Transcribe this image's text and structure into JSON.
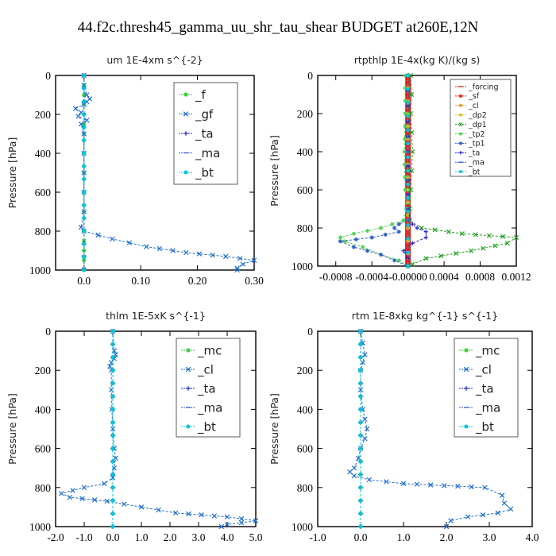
{
  "figure_title": "44.f2c.thresh45_gamma_uu_shr_tau_shear  BUDGET at260E,12N",
  "chart_data": [
    {
      "type": "line",
      "title": "um   1E-4xm s^{-2}",
      "ylabel": "Pressure [hPa]",
      "xlim": [
        -0.05,
        0.3
      ],
      "ylim": [
        1000,
        0
      ],
      "xticks": [
        0.0,
        0.1,
        0.2,
        0.3
      ],
      "xtick_labels": [
        "0.0",
        "0.10",
        "0.20",
        "0.30"
      ],
      "yticks": [
        0,
        200,
        400,
        600,
        800,
        1000
      ],
      "legend_position": "upper-right",
      "series": [
        {
          "name": "_f",
          "color": "#22cc22",
          "marker": "star",
          "y": [
            0,
            50,
            100,
            150,
            200,
            250,
            300,
            400,
            500,
            600,
            700,
            800,
            850,
            900,
            950,
            1000
          ],
          "x": [
            0,
            0,
            0,
            0,
            0,
            0,
            0,
            0,
            0,
            0,
            0,
            0,
            0,
            0,
            0,
            0
          ]
        },
        {
          "name": "_gf",
          "color": "#1f6fd0",
          "marker": "cross",
          "y": [
            0,
            50,
            100,
            120,
            135,
            150,
            170,
            190,
            210,
            230,
            250,
            300,
            400,
            500,
            600,
            700,
            780,
            800,
            840,
            880,
            910,
            930,
            950,
            970,
            990,
            1000
          ],
          "x": [
            0,
            0,
            0.005,
            0.01,
            0.005,
            0.0,
            -0.015,
            -0.005,
            -0.01,
            0.005,
            -0.005,
            0.0,
            0.0,
            0.0,
            0.0,
            0.0,
            -0.005,
            0.0,
            0.05,
            0.11,
            0.18,
            0.25,
            0.3,
            0.28,
            0.27,
            0.27
          ]
        },
        {
          "name": "_ta",
          "color": "#1c1cd0",
          "marker": "plus",
          "y": [
            0,
            200,
            400,
            600,
            800,
            990
          ],
          "x": [
            0,
            0,
            0,
            0,
            0,
            0
          ]
        },
        {
          "name": "_ma",
          "color": "#3a58c8",
          "marker": "dash",
          "y": [
            0,
            200,
            400,
            600,
            800,
            1000
          ],
          "x": [
            0,
            0,
            0,
            0,
            0,
            0
          ]
        },
        {
          "name": "_bt",
          "color": "#00c8d8",
          "marker": "dot",
          "y": [
            0,
            200,
            400,
            600,
            800,
            1000
          ],
          "x": [
            0,
            0,
            0,
            0,
            0,
            0
          ]
        }
      ]
    },
    {
      "type": "line",
      "title": "rtpthlp   1E-4x(kg K)/(kg s)",
      "ylabel": "Pressure [hPa]",
      "xlim": [
        -0.001,
        0.0012
      ],
      "ylim": [
        1000,
        0
      ],
      "xticks": [
        -0.0008,
        -0.0004,
        0.0,
        0.0004,
        0.0008,
        0.0012
      ],
      "xtick_labels": [
        "-0.0008",
        "-0.0004",
        "-0.00000",
        "0.0004",
        "0.0008",
        "0.0012"
      ],
      "yticks": [
        0,
        200,
        400,
        600,
        800,
        1000
      ],
      "legend_position": "upper-right",
      "series": [
        {
          "name": "_forcing",
          "color": "#e02020",
          "marker": "dash",
          "y": [
            0,
            200,
            400,
            600,
            800,
            1000
          ],
          "x": [
            0,
            0,
            0,
            0,
            0,
            0
          ]
        },
        {
          "name": "_sf",
          "color": "#e02020",
          "marker": "star",
          "y": [
            0,
            200,
            400,
            600,
            800,
            1000
          ],
          "x": [
            0,
            0,
            0,
            0,
            0,
            0
          ]
        },
        {
          "name": "_cl",
          "color": "#e0a020",
          "marker": "star",
          "y": [
            0,
            200,
            400,
            600,
            800,
            1000
          ],
          "x": [
            0,
            0,
            0,
            0,
            0,
            0
          ]
        },
        {
          "name": "_dp2",
          "color": "#e0c020",
          "marker": "dot",
          "y": [
            0,
            200,
            400,
            600,
            800,
            1000
          ],
          "x": [
            0,
            0,
            0,
            0,
            0,
            0
          ]
        },
        {
          "name": "_dp1",
          "color": "#20a020",
          "marker": "cross",
          "y": [
            0,
            100,
            200,
            300,
            400,
            500,
            600,
            700,
            760,
            800,
            830,
            850,
            880,
            920,
            960,
            990,
            1000
          ],
          "x": [
            3e-05,
            4e-05,
            3e-05,
            4e-05,
            5e-05,
            4e-05,
            3e-05,
            2e-05,
            1e-05,
            0.00015,
            0.0006,
            0.0012,
            0.0011,
            0.0007,
            0.0002,
            5e-05,
            0.0
          ]
        },
        {
          "name": "_tp2",
          "color": "#50d050",
          "marker": "star",
          "y": [
            0,
            200,
            400,
            600,
            700,
            760,
            800,
            830,
            850,
            870,
            900,
            940,
            970,
            1000
          ],
          "x": [
            -3e-05,
            -3e-05,
            -4e-05,
            -3e-05,
            -2e-05,
            -5e-05,
            -0.0003,
            -0.0006,
            -0.00075,
            -0.0007,
            -0.0005,
            -0.0003,
            -0.0001,
            0.0
          ]
        },
        {
          "name": "_tp1",
          "color": "#3060c0",
          "marker": "star",
          "y": [
            0,
            400,
            700,
            760,
            780,
            800,
            820,
            850,
            870,
            900,
            940,
            1000
          ],
          "x": [
            0,
            0,
            0,
            0,
            -0.0001,
            -0.00015,
            -0.0001,
            -0.0004,
            -0.00075,
            -0.0006,
            -0.0003,
            0.0
          ]
        },
        {
          "name": "_ta",
          "color": "#1c1cd0",
          "marker": "plus",
          "y": [
            0,
            400,
            700,
            780,
            800,
            820,
            850,
            880,
            920,
            960,
            1000
          ],
          "x": [
            0,
            0,
            0,
            5e-05,
            0.0001,
            0.0002,
            0.0002,
            5e-05,
            -5e-05,
            0.0,
            0.0
          ]
        },
        {
          "name": "_ma",
          "color": "#3a58c8",
          "marker": "dash",
          "y": [
            0,
            500,
            1000
          ],
          "x": [
            0,
            0,
            0
          ]
        },
        {
          "name": "_bt",
          "color": "#00c8d8",
          "marker": "dot",
          "y": [
            0,
            500,
            1000
          ],
          "x": [
            0,
            0,
            0
          ]
        }
      ]
    },
    {
      "type": "line",
      "title": "thlm   1E-5xK s^{-1}",
      "ylabel": "Pressure [hPa]",
      "xlim": [
        -2.0,
        5.0
      ],
      "ylim": [
        1000,
        0
      ],
      "xticks": [
        -2.0,
        -1.0,
        0.0,
        1.0,
        2.0,
        3.0,
        4.0,
        5.0
      ],
      "xtick_labels": [
        "-2.0",
        "-1.0",
        "0.0",
        "1.0",
        "2.0",
        "3.0",
        "4.0",
        "5.0"
      ],
      "yticks": [
        0,
        200,
        400,
        600,
        800,
        1000
      ],
      "legend_position": "upper-right",
      "series": [
        {
          "name": "_mc",
          "color": "#22cc22",
          "marker": "star",
          "y": [
            0,
            200,
            400,
            600,
            800,
            1000
          ],
          "x": [
            0,
            0,
            0,
            0,
            0,
            0
          ]
        },
        {
          "name": "_cl",
          "color": "#1f6fd0",
          "marker": "cross",
          "y": [
            0,
            100,
            120,
            140,
            160,
            180,
            200,
            300,
            400,
            500,
            600,
            650,
            700,
            750,
            780,
            800,
            830,
            850,
            870,
            900,
            930,
            950,
            970,
            990,
            1000
          ],
          "x": [
            0,
            0.05,
            0.1,
            0.05,
            -0.05,
            -0.1,
            -0.05,
            -0.05,
            -0.03,
            0.0,
            0.05,
            0.1,
            0.05,
            0.0,
            -0.3,
            -1.0,
            -1.8,
            -1.5,
            -0.2,
            1.0,
            2.2,
            4.0,
            5.0,
            4.0,
            3.8
          ]
        },
        {
          "name": "_ta",
          "color": "#1c1cd0",
          "marker": "plus",
          "y": [
            0,
            200,
            400,
            600,
            800,
            1000
          ],
          "x": [
            0,
            0,
            0,
            0,
            0,
            0
          ]
        },
        {
          "name": "_ma",
          "color": "#3a58c8",
          "marker": "dash",
          "y": [
            0,
            200,
            400,
            600,
            800,
            1000
          ],
          "x": [
            0,
            0,
            0,
            0,
            0,
            0
          ]
        },
        {
          "name": "_bt",
          "color": "#00c8d8",
          "marker": "dot",
          "y": [
            0,
            200,
            400,
            600,
            800,
            1000
          ],
          "x": [
            0,
            0,
            0,
            0,
            0,
            0
          ]
        }
      ]
    },
    {
      "type": "line",
      "title": "rtm   1E-8xkg kg^{-1} s^{-1}",
      "ylabel": "Pressure [hPa]",
      "xlim": [
        -1.0,
        4.0
      ],
      "ylim": [
        1000,
        0
      ],
      "xticks": [
        -1.0,
        0.0,
        1.0,
        2.0,
        3.0,
        4.0
      ],
      "xtick_labels": [
        "-1.0",
        "0.0",
        "1.0",
        "2.0",
        "3.0",
        "4.0"
      ],
      "yticks": [
        0,
        200,
        400,
        600,
        800,
        1000
      ],
      "legend_position": "upper-right",
      "series": [
        {
          "name": "_mc",
          "color": "#22cc22",
          "marker": "star",
          "y": [
            0,
            200,
            400,
            600,
            800,
            1000
          ],
          "x": [
            0,
            0,
            0,
            0,
            0,
            0
          ]
        },
        {
          "name": "_cl",
          "color": "#1f6fd0",
          "marker": "cross",
          "y": [
            0,
            120,
            160,
            200,
            300,
            400,
            450,
            500,
            550,
            600,
            650,
            700,
            720,
            740,
            760,
            780,
            800,
            840,
            880,
            910,
            930,
            950,
            970,
            1000
          ],
          "x": [
            0,
            0.1,
            0.05,
            0.0,
            0.0,
            0.05,
            0.1,
            0.15,
            0.1,
            0.0,
            -0.05,
            -0.15,
            -0.25,
            -0.15,
            0.2,
            1.0,
            2.9,
            3.3,
            3.35,
            3.5,
            3.2,
            2.5,
            2.1,
            2.0
          ]
        },
        {
          "name": "_ta",
          "color": "#1c1cd0",
          "marker": "plus",
          "y": [
            0,
            200,
            400,
            600,
            800,
            1000
          ],
          "x": [
            0,
            0,
            0,
            0,
            0,
            0
          ]
        },
        {
          "name": "_ma",
          "color": "#3a58c8",
          "marker": "dash",
          "y": [
            0,
            200,
            400,
            600,
            800,
            1000
          ],
          "x": [
            0,
            0,
            0,
            0,
            0,
            0
          ]
        },
        {
          "name": "_bt",
          "color": "#00c8d8",
          "marker": "dot",
          "y": [
            0,
            200,
            400,
            600,
            800,
            1000
          ],
          "x": [
            0,
            0,
            0,
            0,
            0,
            0
          ]
        }
      ]
    }
  ]
}
